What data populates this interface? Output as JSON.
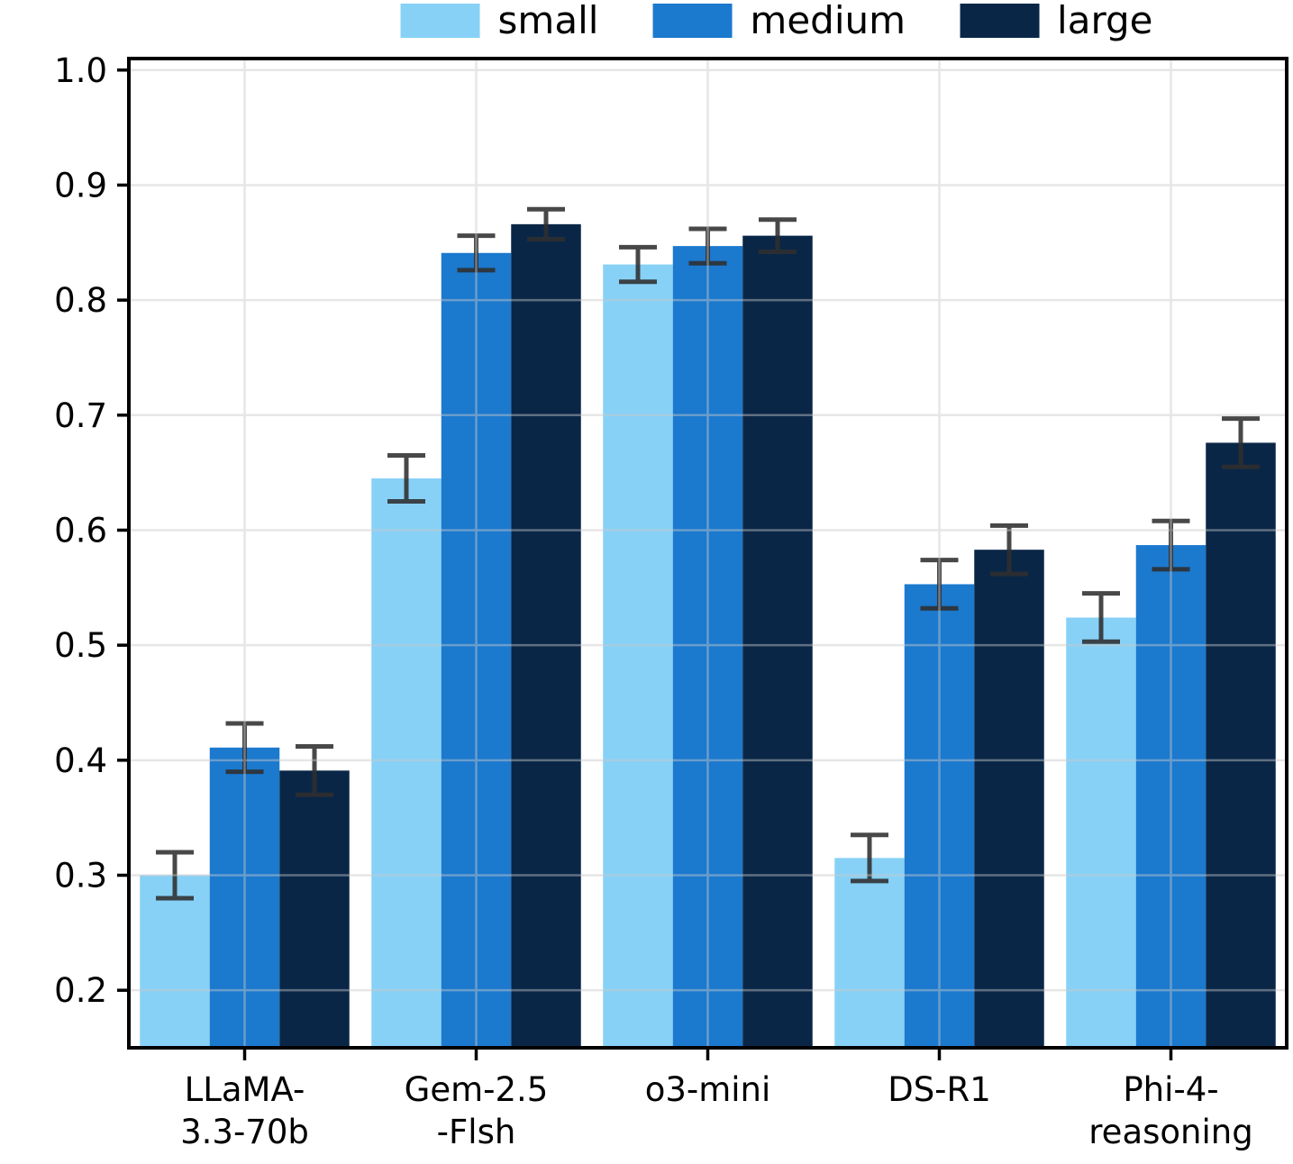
{
  "figure": {
    "background": "#ffffff",
    "frame_color": "#000000",
    "text_color": "#000000",
    "grid_color": "#c9c9c9"
  },
  "legend": {
    "position": "upper center",
    "items": [
      {
        "label": "small",
        "color": "#87d1f7"
      },
      {
        "label": "medium",
        "color": "#1b79ce"
      },
      {
        "label": "large",
        "color": "#0a2647"
      }
    ]
  },
  "chart_data": {
    "type": "bar",
    "title": "",
    "xlabel": "",
    "ylabel": "",
    "categories": [
      "LLaMA-3.3-70b",
      "Gem-2.5-Flsh",
      "o3-mini",
      "DS-R1",
      "Phi-4-reasoning"
    ],
    "category_label_lines": [
      [
        "LLaMA-",
        "3.3-70b"
      ],
      [
        "Gem-2.5",
        "-Flsh"
      ],
      [
        "o3-mini"
      ],
      [
        "DS-R1"
      ],
      [
        "Phi-4-",
        "reasoning"
      ]
    ],
    "series": [
      {
        "name": "small",
        "color": "#87d1f7",
        "values": [
          0.3,
          0.645,
          0.831,
          0.315,
          0.524
        ],
        "errors": [
          0.02,
          0.02,
          0.015,
          0.02,
          0.021
        ]
      },
      {
        "name": "medium",
        "color": "#1b79ce",
        "values": [
          0.411,
          0.841,
          0.847,
          0.553,
          0.587
        ],
        "errors": [
          0.021,
          0.015,
          0.015,
          0.021,
          0.021
        ]
      },
      {
        "name": "large",
        "color": "#0a2647",
        "values": [
          0.391,
          0.866,
          0.856,
          0.583,
          0.676
        ],
        "errors": [
          0.021,
          0.013,
          0.014,
          0.021,
          0.021
        ]
      }
    ],
    "ylim": [
      0.15,
      1.01
    ],
    "yticks": [
      0.2,
      0.3,
      0.4,
      0.5,
      0.6,
      0.7,
      0.8,
      0.9,
      1.0
    ],
    "grid": "both",
    "grid_on_top": true,
    "error_bar_color": "#2f2f2f",
    "legend_position": "upper center"
  }
}
